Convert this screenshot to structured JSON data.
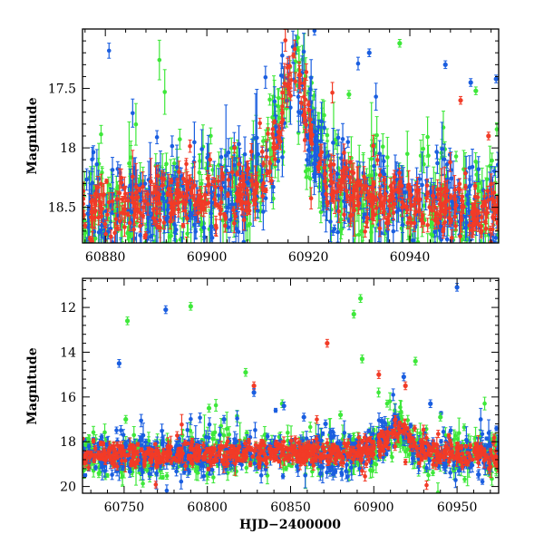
{
  "colors": {
    "green": "#3ee83a",
    "red": "#f23b27",
    "blue": "#1a5ee0"
  },
  "chart_data": [
    {
      "type": "scatter",
      "title": "",
      "xlabel": "",
      "ylabel": "Magnitude",
      "xlim": [
        60875.5,
        60957.5
      ],
      "ylim": [
        18.8,
        17.0
      ],
      "y_inverted": true,
      "xticks": [
        60880,
        60900,
        60920,
        60940
      ],
      "yticks": [
        17.5,
        18,
        18.5
      ],
      "xtick_labels": [
        "60880",
        "60900",
        "60920",
        "60940"
      ],
      "ytick_labels": [
        "17.5",
        "18",
        "18.5"
      ],
      "series": [
        {
          "name": "green",
          "color": "green"
        },
        {
          "name": "red",
          "color": "red"
        },
        {
          "name": "blue",
          "color": "blue"
        }
      ],
      "trend": {
        "x": [
          60876,
          60885,
          60895,
          60905,
          60910,
          60913,
          60916,
          60917.5,
          60919,
          60922,
          60925,
          60930,
          60940,
          60957
        ],
        "y": [
          18.55,
          18.5,
          18.48,
          18.42,
          18.32,
          18.02,
          17.45,
          17.3,
          17.6,
          18.15,
          18.3,
          18.4,
          18.48,
          18.55
        ]
      },
      "scatter_amp": {
        "green": 0.45,
        "red": 0.22,
        "blue": 0.4
      },
      "outliers": [
        {
          "series": "red",
          "x": 60950,
          "y": 17.6
        },
        {
          "series": "red",
          "x": 60955.5,
          "y": 17.9
        },
        {
          "series": "blue",
          "x": 60947,
          "y": 17.3
        },
        {
          "series": "blue",
          "x": 60952,
          "y": 17.45
        },
        {
          "series": "blue",
          "x": 60957,
          "y": 17.42
        },
        {
          "series": "green",
          "x": 60938,
          "y": 17.12
        },
        {
          "series": "green",
          "x": 60953,
          "y": 17.52
        },
        {
          "series": "green",
          "x": 60928,
          "y": 17.55
        },
        {
          "series": "blue",
          "x": 60932,
          "y": 17.2
        }
      ]
    },
    {
      "type": "scatter",
      "title": "",
      "xlabel": "HJD−2400000",
      "ylabel": "Magnitude",
      "xlim": [
        60725,
        60975
      ],
      "ylim": [
        20.3,
        10.7
      ],
      "y_inverted": true,
      "xticks": [
        60750,
        60800,
        60850,
        60900,
        60950
      ],
      "yticks": [
        12,
        14,
        16,
        18,
        20
      ],
      "xtick_labels": [
        "60750",
        "60800",
        "60850",
        "60900",
        "60950"
      ],
      "ytick_labels": [
        "12",
        "14",
        "16",
        "18",
        "20"
      ],
      "series": [
        {
          "name": "green",
          "color": "green"
        },
        {
          "name": "red",
          "color": "red"
        },
        {
          "name": "blue",
          "color": "blue"
        }
      ],
      "trend": {
        "x": [
          60725,
          60780,
          60830,
          60880,
          60895,
          60905,
          60912,
          60917,
          60920,
          60925,
          60935,
          60950,
          60970
        ],
        "y": [
          18.6,
          18.6,
          18.55,
          18.5,
          18.4,
          18.1,
          17.6,
          17.3,
          17.8,
          18.3,
          18.5,
          18.55,
          18.6
        ]
      },
      "scatter_amp": {
        "green": 0.9,
        "red": 0.5,
        "blue": 0.8
      },
      "outliers": [
        {
          "series": "blue",
          "x": 60747,
          "y": 14.5
        },
        {
          "series": "blue",
          "x": 60775,
          "y": 12.1
        },
        {
          "series": "green",
          "x": 60752,
          "y": 12.6
        },
        {
          "series": "green",
          "x": 60790,
          "y": 11.95
        },
        {
          "series": "green",
          "x": 60751,
          "y": 17.0
        },
        {
          "series": "green",
          "x": 60823,
          "y": 14.9
        },
        {
          "series": "red",
          "x": 60828,
          "y": 15.5
        },
        {
          "series": "blue",
          "x": 60828,
          "y": 15.8
        },
        {
          "series": "red",
          "x": 60872,
          "y": 13.6
        },
        {
          "series": "green",
          "x": 60888,
          "y": 12.3
        },
        {
          "series": "green",
          "x": 60892,
          "y": 11.6
        },
        {
          "series": "green",
          "x": 60893,
          "y": 14.3
        },
        {
          "series": "red",
          "x": 60903,
          "y": 15.0
        },
        {
          "series": "red",
          "x": 60919,
          "y": 15.5
        },
        {
          "series": "blue",
          "x": 60918,
          "y": 15.1
        },
        {
          "series": "green",
          "x": 60925,
          "y": 14.4
        },
        {
          "series": "blue",
          "x": 60950,
          "y": 11.1
        },
        {
          "series": "blue",
          "x": 60858,
          "y": 16.9
        },
        {
          "series": "blue",
          "x": 60871,
          "y": 17.2
        },
        {
          "series": "green",
          "x": 60845,
          "y": 16.3
        },
        {
          "series": "green",
          "x": 60880,
          "y": 16.8
        },
        {
          "series": "blue",
          "x": 60934,
          "y": 16.3
        },
        {
          "series": "green",
          "x": 60940,
          "y": 16.9
        },
        {
          "series": "blue",
          "x": 60846,
          "y": 16.4
        },
        {
          "series": "green",
          "x": 60801,
          "y": 16.5
        },
        {
          "series": "blue",
          "x": 60810,
          "y": 17.0
        }
      ]
    }
  ]
}
